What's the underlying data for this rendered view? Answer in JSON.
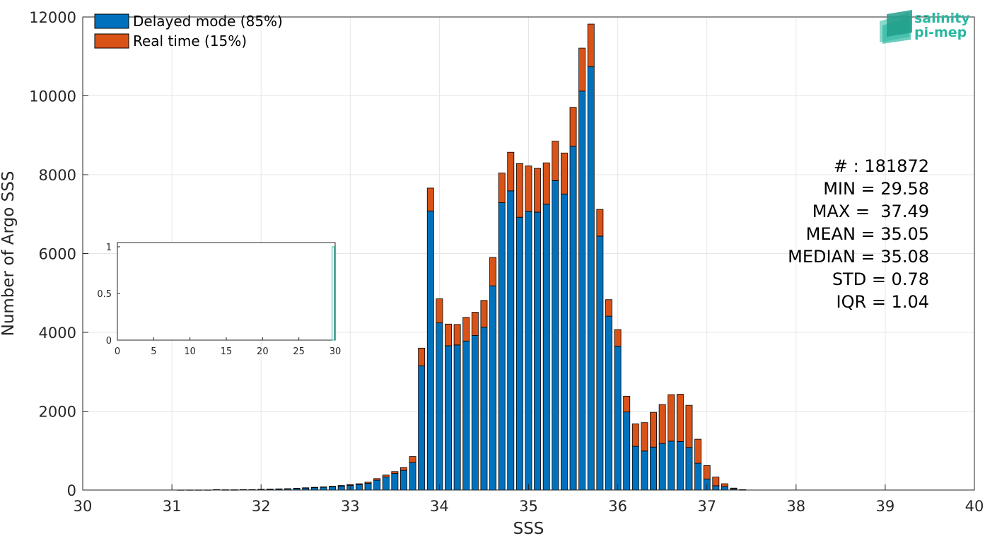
{
  "chart_data": {
    "type": "bar",
    "stacked": true,
    "xlabel": "SSS",
    "ylabel": "Number of Argo SSS",
    "xlim": [
      30,
      40
    ],
    "ylim": [
      0,
      12000
    ],
    "xticks": [
      "30",
      "31",
      "32",
      "33",
      "34",
      "35",
      "36",
      "37",
      "38",
      "39",
      "40"
    ],
    "yticks": [
      "0",
      "2000",
      "4000",
      "6000",
      "8000",
      "10000",
      "12000"
    ],
    "grid": true,
    "legend_position": "top-left",
    "bin_width": 0.1,
    "x": [
      31.1,
      31.2,
      31.3,
      31.4,
      31.5,
      31.6,
      31.7,
      31.8,
      31.9,
      32.0,
      32.1,
      32.2,
      32.3,
      32.4,
      32.5,
      32.6,
      32.7,
      32.8,
      32.9,
      33.0,
      33.1,
      33.2,
      33.3,
      33.4,
      33.5,
      33.6,
      33.7,
      33.8,
      33.9,
      34.0,
      34.1,
      34.2,
      34.3,
      34.4,
      34.5,
      34.6,
      34.7,
      34.8,
      34.9,
      35.0,
      35.1,
      35.2,
      35.3,
      35.4,
      35.5,
      35.6,
      35.7,
      35.8,
      35.9,
      36.0,
      36.1,
      36.2,
      36.3,
      36.4,
      36.5,
      36.6,
      36.7,
      36.8,
      36.9,
      37.0,
      37.1,
      37.2,
      37.3,
      37.4
    ],
    "series": [
      {
        "name": "Delayed mode (85%)",
        "color": "#0072bd",
        "values": [
          3,
          3,
          3,
          3,
          10,
          5,
          5,
          10,
          10,
          15,
          20,
          25,
          30,
          40,
          50,
          60,
          70,
          80,
          100,
          120,
          140,
          170,
          250,
          330,
          420,
          500,
          700,
          3150,
          7080,
          4240,
          3660,
          3680,
          3780,
          3920,
          4130,
          5180,
          7290,
          7590,
          6920,
          7070,
          7050,
          7250,
          7850,
          7510,
          8720,
          10120,
          10740,
          6440,
          4410,
          3650,
          1980,
          1110,
          990,
          1090,
          1180,
          1240,
          1230,
          1080,
          680,
          280,
          110,
          90,
          30,
          5
        ]
      },
      {
        "name": "Real time (15%)",
        "color": "#d95319",
        "values": [
          0,
          0,
          0,
          0,
          2,
          1,
          1,
          2,
          2,
          3,
          3,
          5,
          5,
          5,
          8,
          10,
          10,
          15,
          15,
          20,
          20,
          30,
          40,
          50,
          50,
          70,
          150,
          450,
          580,
          610,
          550,
          520,
          600,
          590,
          680,
          720,
          750,
          980,
          1360,
          1150,
          1110,
          1050,
          1000,
          1040,
          990,
          1090,
          1080,
          680,
          420,
          420,
          400,
          570,
          720,
          880,
          990,
          1180,
          1200,
          1070,
          610,
          340,
          220,
          70,
          20,
          5
        ]
      }
    ],
    "stats": [
      "# : 181872",
      "MIN = 29.58",
      "MAX =  37.49",
      "MEAN = 35.05",
      "MEDIAN = 35.08",
      "STD = 0.78",
      "IQR = 1.04"
    ],
    "inset": {
      "xlim": [
        0,
        30
      ],
      "ylim": [
        0,
        1
      ],
      "xticks": [
        "0",
        "5",
        "10",
        "15",
        "20",
        "25",
        "30"
      ],
      "yticks": [
        "0",
        "0.5",
        "1"
      ],
      "bar": {
        "x0": 29.58,
        "x1": 29.9,
        "value": 1,
        "color": "#2bb8a1"
      }
    }
  },
  "logo": {
    "line1": "salinity",
    "line2": "pi-mep"
  }
}
